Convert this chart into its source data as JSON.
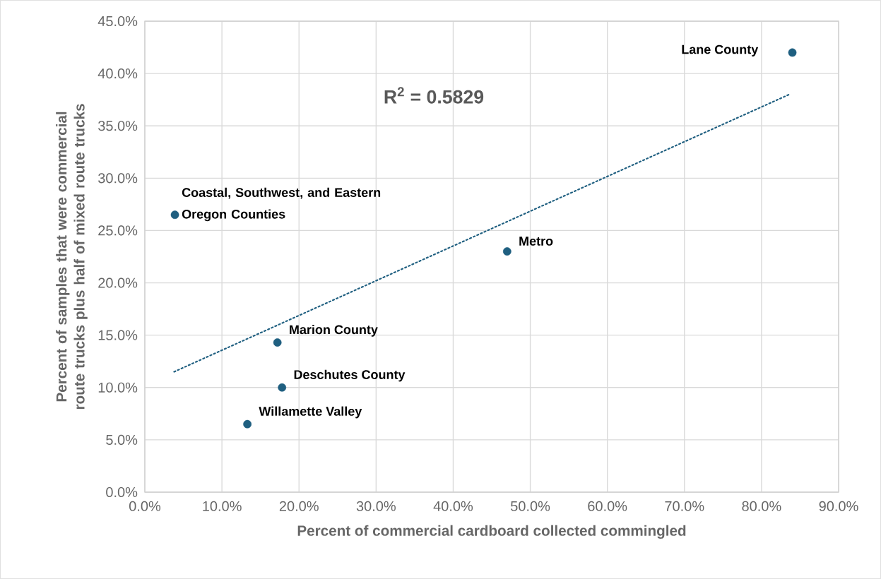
{
  "chart_data": {
    "type": "scatter",
    "xlabel": "Percent of commercial cardboard collected commingled",
    "ylabel": "Percent of samples that were commercial route trucks plus half of mixed route trucks",
    "series": [
      {
        "color": "#1f5f80",
        "marker": "circle",
        "x": [
          84.0,
          3.9,
          47.0,
          17.2,
          17.8,
          13.3
        ],
        "values": [
          42.0,
          26.5,
          23.0,
          14.3,
          10.0,
          6.5
        ]
      },
      {
        "type": "line",
        "color": "#1f5f80",
        "line_style": "dotted",
        "marker": "none",
        "x": [
          3.8,
          83.6
        ],
        "values": [
          11.5,
          38.0
        ]
      }
    ],
    "xlim": [
      0,
      90
    ],
    "ylim": [
      0,
      45
    ],
    "xticks": [
      {
        "value": 0,
        "label": "0.0%"
      },
      {
        "value": 10,
        "label": "10.0%"
      },
      {
        "value": 20,
        "label": "20.0%"
      },
      {
        "value": 30,
        "label": "30.0%"
      },
      {
        "value": 40,
        "label": "40.0%"
      },
      {
        "value": 50,
        "label": "50.0%"
      },
      {
        "value": 60,
        "label": "60.0%"
      },
      {
        "value": 70,
        "label": "70.0%"
      },
      {
        "value": 80,
        "label": "80.0%"
      },
      {
        "value": 90,
        "label": "90.0%"
      }
    ],
    "yticks": [
      {
        "value": 0,
        "label": "0.0%"
      },
      {
        "value": 5,
        "label": "5.0%"
      },
      {
        "value": 10,
        "label": "10.0%"
      },
      {
        "value": 15,
        "label": "15.0%"
      },
      {
        "value": 20,
        "label": "20.0%"
      },
      {
        "value": 25,
        "label": "25.0%"
      },
      {
        "value": 30,
        "label": "30.0%"
      },
      {
        "value": 35,
        "label": "35.0%"
      },
      {
        "value": 40,
        "label": "40.0%"
      },
      {
        "value": 45,
        "label": "45.0%"
      }
    ],
    "grid": true,
    "annotations": [
      {
        "text": "Lane County",
        "x": 84.0,
        "y": 42.0
      },
      {
        "text": "Coastal, Southwest, and Eastern Oregon Counties",
        "x": 3.9,
        "y": 26.5
      },
      {
        "text": "Metro",
        "x": 47.0,
        "y": 23.0
      },
      {
        "text": "Marion County",
        "x": 17.2,
        "y": 14.3
      },
      {
        "text": "Deschutes County",
        "x": 17.8,
        "y": 10.0
      },
      {
        "text": "Willamette Valley",
        "x": 13.3,
        "y": 6.5
      },
      "R$^{2}$ = 0.5829"
    ]
  }
}
